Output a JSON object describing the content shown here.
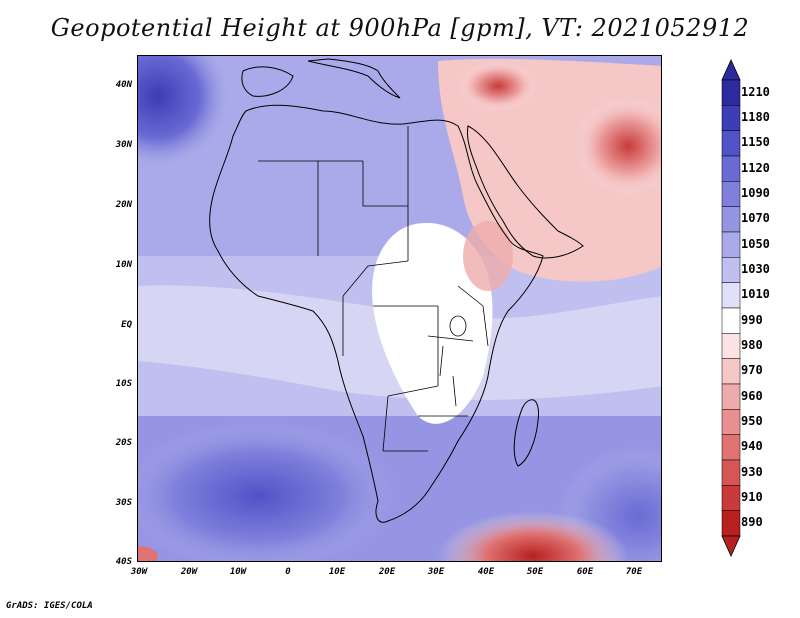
{
  "title": "Geopotential Height at 900hPa [gpm], VT: 2021052912",
  "footer": "GrADS: IGES/COLA",
  "map": {
    "variable": "Geopotential Height",
    "level": "900hPa",
    "units": "gpm",
    "valid_time": "2021052912",
    "lat_labels": [
      "40N",
      "30N",
      "20N",
      "10N",
      "EQ",
      "10S",
      "20S",
      "30S",
      "40S"
    ],
    "lon_labels": [
      "30W",
      "20W",
      "10W",
      "0",
      "10E",
      "20E",
      "30E",
      "40E",
      "50E",
      "60E",
      "70E"
    ]
  },
  "colorbar": {
    "levels": [
      "1210",
      "1180",
      "1150",
      "1120",
      "1090",
      "1070",
      "1050",
      "1030",
      "1010",
      "990",
      "980",
      "970",
      "960",
      "950",
      "940",
      "930",
      "910",
      "890"
    ],
    "colors": [
      "#2b2b9e",
      "#3d3db5",
      "#5252c8",
      "#6a6ad4",
      "#8080dc",
      "#9595e3",
      "#aaaaea",
      "#c0c0f0",
      "#e0e0f8",
      "#ffffff",
      "#fbe3e3",
      "#f5c7c7",
      "#efabab",
      "#e88f8f",
      "#e07272",
      "#d65555",
      "#c93a3a",
      "#b82020"
    ]
  },
  "legend_colors": {
    "land_high": "#6a6ad4",
    "ocean": "#c0c0f0",
    "low": "#e07272"
  }
}
